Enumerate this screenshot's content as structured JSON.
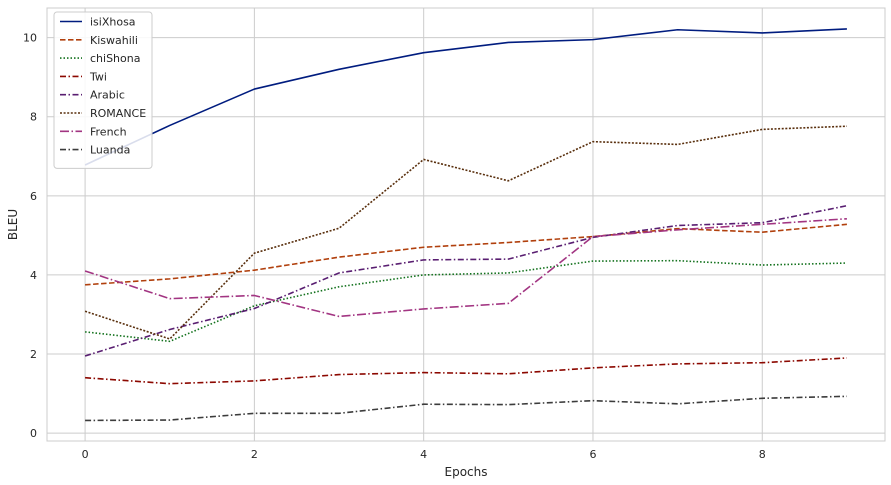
{
  "chart_data": {
    "type": "line",
    "xlabel": "Epochs",
    "ylabel": "BLEU",
    "xlim": [
      -0.45,
      9.45
    ],
    "ylim": [
      -0.2,
      10.75
    ],
    "x_ticks": [
      0,
      2,
      4,
      6,
      8
    ],
    "y_ticks": [
      0,
      2,
      4,
      6,
      8,
      10
    ],
    "grid": true,
    "legend_position": "top-left",
    "x": [
      0,
      1,
      2,
      3,
      4,
      5,
      6,
      7,
      8,
      9
    ],
    "series": [
      {
        "name": "isiXhosa",
        "color": "#001c7f",
        "dash": "solid",
        "values": [
          6.78,
          7.78,
          8.7,
          9.2,
          9.62,
          9.88,
          9.95,
          10.2,
          10.12,
          10.22
        ]
      },
      {
        "name": "Kiswahili",
        "color": "#b1400d",
        "dash": "dashed",
        "values": [
          3.75,
          3.9,
          4.12,
          4.45,
          4.7,
          4.82,
          4.97,
          5.17,
          5.08,
          5.28
        ]
      },
      {
        "name": "chiShona",
        "color": "#12711c",
        "dash": "dotted",
        "values": [
          2.56,
          2.32,
          3.22,
          3.7,
          4.0,
          4.05,
          4.35,
          4.36,
          4.25,
          4.3
        ]
      },
      {
        "name": "Twi",
        "color": "#8c0800",
        "dash": "dashdot",
        "values": [
          1.4,
          1.25,
          1.32,
          1.48,
          1.53,
          1.5,
          1.65,
          1.75,
          1.78,
          1.9
        ]
      },
      {
        "name": "Arabic",
        "color": "#591e71",
        "dash": "dashdot",
        "values": [
          1.95,
          2.62,
          3.15,
          4.05,
          4.38,
          4.4,
          4.95,
          5.25,
          5.32,
          5.75
        ]
      },
      {
        "name": "ROMANCE",
        "color": "#592f0d",
        "dash": "densedot",
        "values": [
          3.08,
          2.38,
          4.55,
          5.18,
          6.92,
          6.38,
          7.37,
          7.3,
          7.68,
          7.76
        ]
      },
      {
        "name": "French",
        "color": "#a23582",
        "dash": "longdash",
        "values": [
          4.1,
          3.4,
          3.48,
          2.95,
          3.14,
          3.28,
          4.97,
          5.14,
          5.28,
          5.42
        ]
      },
      {
        "name": "Luanda",
        "color": "#3c3c3c",
        "dash": "dashdot",
        "values": [
          0.32,
          0.33,
          0.5,
          0.5,
          0.73,
          0.72,
          0.82,
          0.74,
          0.88,
          0.93
        ]
      }
    ]
  }
}
